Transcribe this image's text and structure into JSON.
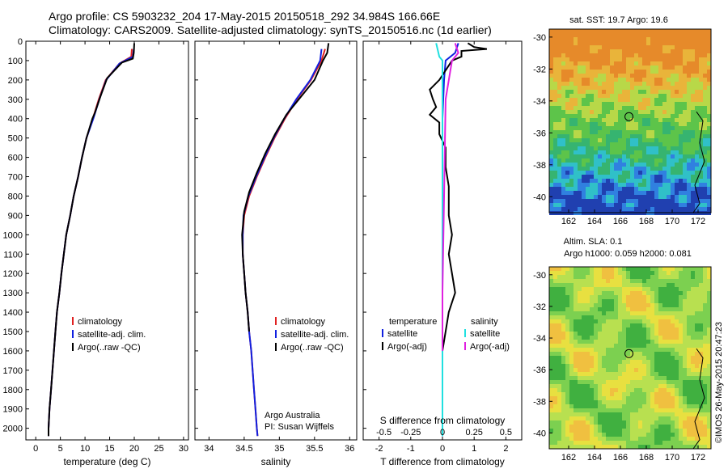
{
  "header": {
    "line1": "Argo profile: CS 5903232_204 17-May-2015 20150518_292 34.984S 166.66E",
    "line2": "Climatology: CARS2009. Satellite-adjusted climatology: synTS_20150516.nc (1d earlier)"
  },
  "colors": {
    "climatology": "#e02020",
    "satellite": "#1020e0",
    "argo": "#000000",
    "sat_s": "#20e0e0",
    "argo_s": "#e020e0"
  },
  "chart_data": [
    {
      "type": "line",
      "title": "",
      "xlabel": "temperature (deg C)",
      "ylabel": "",
      "xlim": [
        -2,
        31
      ],
      "ylim": [
        2060,
        0
      ],
      "xticks": [
        0,
        5,
        10,
        15,
        20,
        25,
        30
      ],
      "yticks": [
        0,
        100,
        200,
        300,
        400,
        500,
        600,
        700,
        800,
        900,
        1000,
        1100,
        1200,
        1300,
        1400,
        1500,
        1600,
        1700,
        1800,
        1900,
        2000
      ],
      "legend": [
        "climatology",
        "satellite-adj. clim.",
        "Argo(..raw -QC)"
      ],
      "series": [
        {
          "name": "climatology",
          "color": "#e02020",
          "points": [
            [
              19.5,
              40
            ],
            [
              19.4,
              80
            ],
            [
              17,
              115
            ],
            [
              14.2,
              200
            ],
            [
              12.8,
              300
            ],
            [
              11.6,
              400
            ],
            [
              10.3,
              500
            ],
            [
              9.4,
              600
            ],
            [
              8.6,
              700
            ],
            [
              7.7,
              800
            ],
            [
              7,
              900
            ],
            [
              6.2,
              1000
            ],
            [
              5.7,
              1100
            ],
            [
              5.2,
              1200
            ],
            [
              4.8,
              1300
            ],
            [
              4.3,
              1400
            ],
            [
              4,
              1500
            ],
            [
              3.7,
              1600
            ],
            [
              3.4,
              1700
            ],
            [
              3.1,
              1800
            ],
            [
              2.8,
              1900
            ],
            [
              2.6,
              2000
            ],
            [
              2.6,
              2040
            ]
          ]
        },
        {
          "name": "satellite-adj. clim.",
          "color": "#1020e0",
          "points": [
            [
              19.9,
              40
            ],
            [
              19.7,
              80
            ],
            [
              17,
              115
            ],
            [
              14.3,
              200
            ],
            [
              12.9,
              300
            ],
            [
              11.7,
              400
            ],
            [
              10.3,
              500
            ],
            [
              9.4,
              600
            ],
            [
              8.6,
              700
            ],
            [
              7.7,
              800
            ],
            [
              7,
              900
            ],
            [
              6.2,
              1000
            ],
            [
              5.7,
              1100
            ],
            [
              5.2,
              1200
            ],
            [
              4.8,
              1300
            ],
            [
              4.3,
              1400
            ],
            [
              4,
              1500
            ],
            [
              3.7,
              1600
            ],
            [
              3.4,
              1700
            ],
            [
              3.1,
              1800
            ],
            [
              2.8,
              1900
            ],
            [
              2.6,
              2000
            ],
            [
              2.6,
              2040
            ]
          ]
        },
        {
          "name": "Argo(..raw -QC)",
          "color": "#000000",
          "points": [
            [
              20,
              10
            ],
            [
              19.9,
              60
            ],
            [
              19.7,
              90
            ],
            [
              17.5,
              110
            ],
            [
              14.5,
              190
            ],
            [
              13.2,
              280
            ],
            [
              12,
              370
            ],
            [
              11.5,
              400
            ],
            [
              10.3,
              500
            ],
            [
              9.4,
              600
            ],
            [
              8.6,
              700
            ],
            [
              7.7,
              800
            ],
            [
              7,
              900
            ],
            [
              6.2,
              1000
            ],
            [
              5.7,
              1100
            ],
            [
              5.2,
              1200
            ],
            [
              4.8,
              1300
            ],
            [
              4.3,
              1400
            ],
            [
              4,
              1500
            ],
            [
              3.7,
              1600
            ],
            [
              3.4,
              1700
            ],
            [
              3.1,
              1800
            ],
            [
              2.8,
              1900
            ],
            [
              2.6,
              2000
            ],
            [
              2.6,
              2040
            ]
          ]
        }
      ]
    },
    {
      "type": "line",
      "title": "",
      "xlabel": "salinity",
      "ylabel": "",
      "xlim": [
        33.8,
        36.1
      ],
      "ylim": [
        2060,
        0
      ],
      "xticks": [
        34,
        34.5,
        35,
        35.5,
        36
      ],
      "legend": [
        "climatology",
        "satellite-adj. clim.",
        "Argo(..raw -QC)"
      ],
      "annotation": [
        "Argo Australia",
        "PI: Susan Wijffels"
      ],
      "series": [
        {
          "name": "climatology",
          "color": "#e02020",
          "points": [
            [
              35.65,
              40
            ],
            [
              35.6,
              100
            ],
            [
              35.45,
              200
            ],
            [
              35.25,
              300
            ],
            [
              35.08,
              400
            ],
            [
              34.93,
              500
            ],
            [
              34.8,
              600
            ],
            [
              34.68,
              700
            ],
            [
              34.57,
              800
            ],
            [
              34.5,
              900
            ],
            [
              34.48,
              1000
            ],
            [
              34.48,
              1100
            ],
            [
              34.5,
              1200
            ],
            [
              34.52,
              1300
            ],
            [
              34.55,
              1400
            ],
            [
              34.57,
              1500
            ],
            [
              34.6,
              1600
            ],
            [
              34.62,
              1700
            ],
            [
              34.64,
              1800
            ],
            [
              34.66,
              1900
            ],
            [
              34.68,
              2000
            ],
            [
              34.69,
              2040
            ]
          ]
        },
        {
          "name": "satellite-adj. clim.",
          "color": "#1020e0",
          "points": [
            [
              35.6,
              40
            ],
            [
              35.58,
              100
            ],
            [
              35.44,
              200
            ],
            [
              35.24,
              300
            ],
            [
              35.07,
              400
            ],
            [
              34.92,
              500
            ],
            [
              34.79,
              600
            ],
            [
              34.67,
              700
            ],
            [
              34.56,
              800
            ],
            [
              34.49,
              900
            ],
            [
              34.48,
              1000
            ],
            [
              34.48,
              1100
            ],
            [
              34.5,
              1200
            ],
            [
              34.52,
              1300
            ],
            [
              34.55,
              1400
            ],
            [
              34.57,
              1500
            ],
            [
              34.6,
              1600
            ],
            [
              34.62,
              1700
            ],
            [
              34.64,
              1800
            ],
            [
              34.66,
              1900
            ],
            [
              34.68,
              2000
            ],
            [
              34.69,
              2040
            ]
          ]
        },
        {
          "name": "Argo(..raw -QC)",
          "color": "#000000",
          "points": [
            [
              35.7,
              10
            ],
            [
              35.68,
              60
            ],
            [
              35.62,
              100
            ],
            [
              35.5,
              200
            ],
            [
              35.3,
              290
            ],
            [
              35.1,
              380
            ],
            [
              34.94,
              480
            ],
            [
              34.8,
              580
            ],
            [
              34.68,
              680
            ],
            [
              34.57,
              780
            ],
            [
              34.5,
              880
            ],
            [
              34.47,
              1000
            ],
            [
              34.48,
              1100
            ],
            [
              34.5,
              1200
            ],
            [
              34.52,
              1300
            ],
            [
              34.55,
              1400
            ],
            [
              34.57,
              1500
            ]
          ]
        }
      ]
    },
    {
      "type": "line",
      "title": "",
      "xlabel": "T difference from climatology",
      "x2label": "S difference from climatology",
      "xlim": [
        -2.5,
        2.5
      ],
      "ylim": [
        2060,
        0
      ],
      "xticks": [
        -2,
        -1,
        0,
        1,
        2
      ],
      "x2ticks": [
        "-0.5",
        "-0.25",
        "0",
        "0.25",
        "0.5"
      ],
      "legend_t": [
        "temperature",
        "satellite",
        "Argo(-adj)"
      ],
      "legend_s": [
        "salinity",
        "satellite",
        "Argo(-adj)"
      ],
      "series": [
        {
          "name": "satellite",
          "color": "#1020e0",
          "points": [
            [
              0.5,
              10
            ],
            [
              0.4,
              60
            ],
            [
              0.1,
              100
            ],
            [
              0.05,
              200
            ],
            [
              0,
              400
            ],
            [
              0,
              800
            ],
            [
              0,
              1200
            ],
            [
              0,
              1600
            ],
            [
              0,
              2040
            ]
          ]
        },
        {
          "name": "Argo(-adj)",
          "color": "#000000",
          "points": [
            [
              0.8,
              10
            ],
            [
              1,
              30
            ],
            [
              1.4,
              40
            ],
            [
              0.6,
              50
            ],
            [
              0.6,
              80
            ],
            [
              0.3,
              100
            ],
            [
              -0.1,
              200
            ],
            [
              -0.4,
              250
            ],
            [
              -0.3,
              300
            ],
            [
              -0.2,
              340
            ],
            [
              -0.4,
              380
            ],
            [
              -0.1,
              420
            ],
            [
              -0.1,
              480
            ],
            [
              0.1,
              550
            ],
            [
              0.1,
              650
            ],
            [
              0.2,
              750
            ],
            [
              0.2,
              900
            ],
            [
              0.3,
              1000
            ],
            [
              0.2,
              1100
            ],
            [
              0.3,
              1200
            ],
            [
              0.4,
              1300
            ],
            [
              0.2,
              1400
            ],
            [
              0.1,
              1500
            ],
            [
              0,
              1600
            ]
          ]
        },
        {
          "name": "salinity satellite",
          "color": "#20e0e0",
          "points": [
            [
              -0.2,
              10
            ],
            [
              -0.1,
              80
            ],
            [
              0,
              100
            ],
            [
              0,
              400
            ],
            [
              0,
              800
            ],
            [
              0,
              1200
            ],
            [
              0,
              1600
            ],
            [
              0,
              2040
            ]
          ]
        },
        {
          "name": "salinity Argo(-adj)",
          "color": "#e020e0",
          "points": [
            [
              0.4,
              10
            ],
            [
              0.5,
              60
            ],
            [
              0.3,
              100
            ],
            [
              0.1,
              300
            ],
            [
              0.05,
              800
            ],
            [
              0,
              1300
            ],
            [
              0,
              1600
            ]
          ]
        }
      ]
    },
    {
      "type": "heatmap",
      "title": "sat. SST: 19.7 Argo: 19.6",
      "xlim": [
        160.5,
        173
      ],
      "ylim": [
        -41,
        -29.5
      ],
      "xticks": [
        162,
        164,
        166,
        168,
        170,
        172
      ],
      "yticks": [
        -30,
        -32,
        -34,
        -36,
        -38,
        -40
      ],
      "marker": [
        166.66,
        -34.984
      ]
    },
    {
      "type": "heatmap",
      "title": "Altim. SLA: 0.1",
      "subtitle": "Argo h1000: 0.059 h2000: 0.081",
      "xlim": [
        160.5,
        173
      ],
      "ylim": [
        -41,
        -29.5
      ],
      "xticks": [
        162,
        164,
        166,
        168,
        170,
        172
      ],
      "yticks": [
        -30,
        -32,
        -34,
        -36,
        -38,
        -40
      ],
      "marker": [
        166.66,
        -34.984
      ]
    }
  ],
  "stamp": "©IMOS 26-May-2015 20:47:23"
}
